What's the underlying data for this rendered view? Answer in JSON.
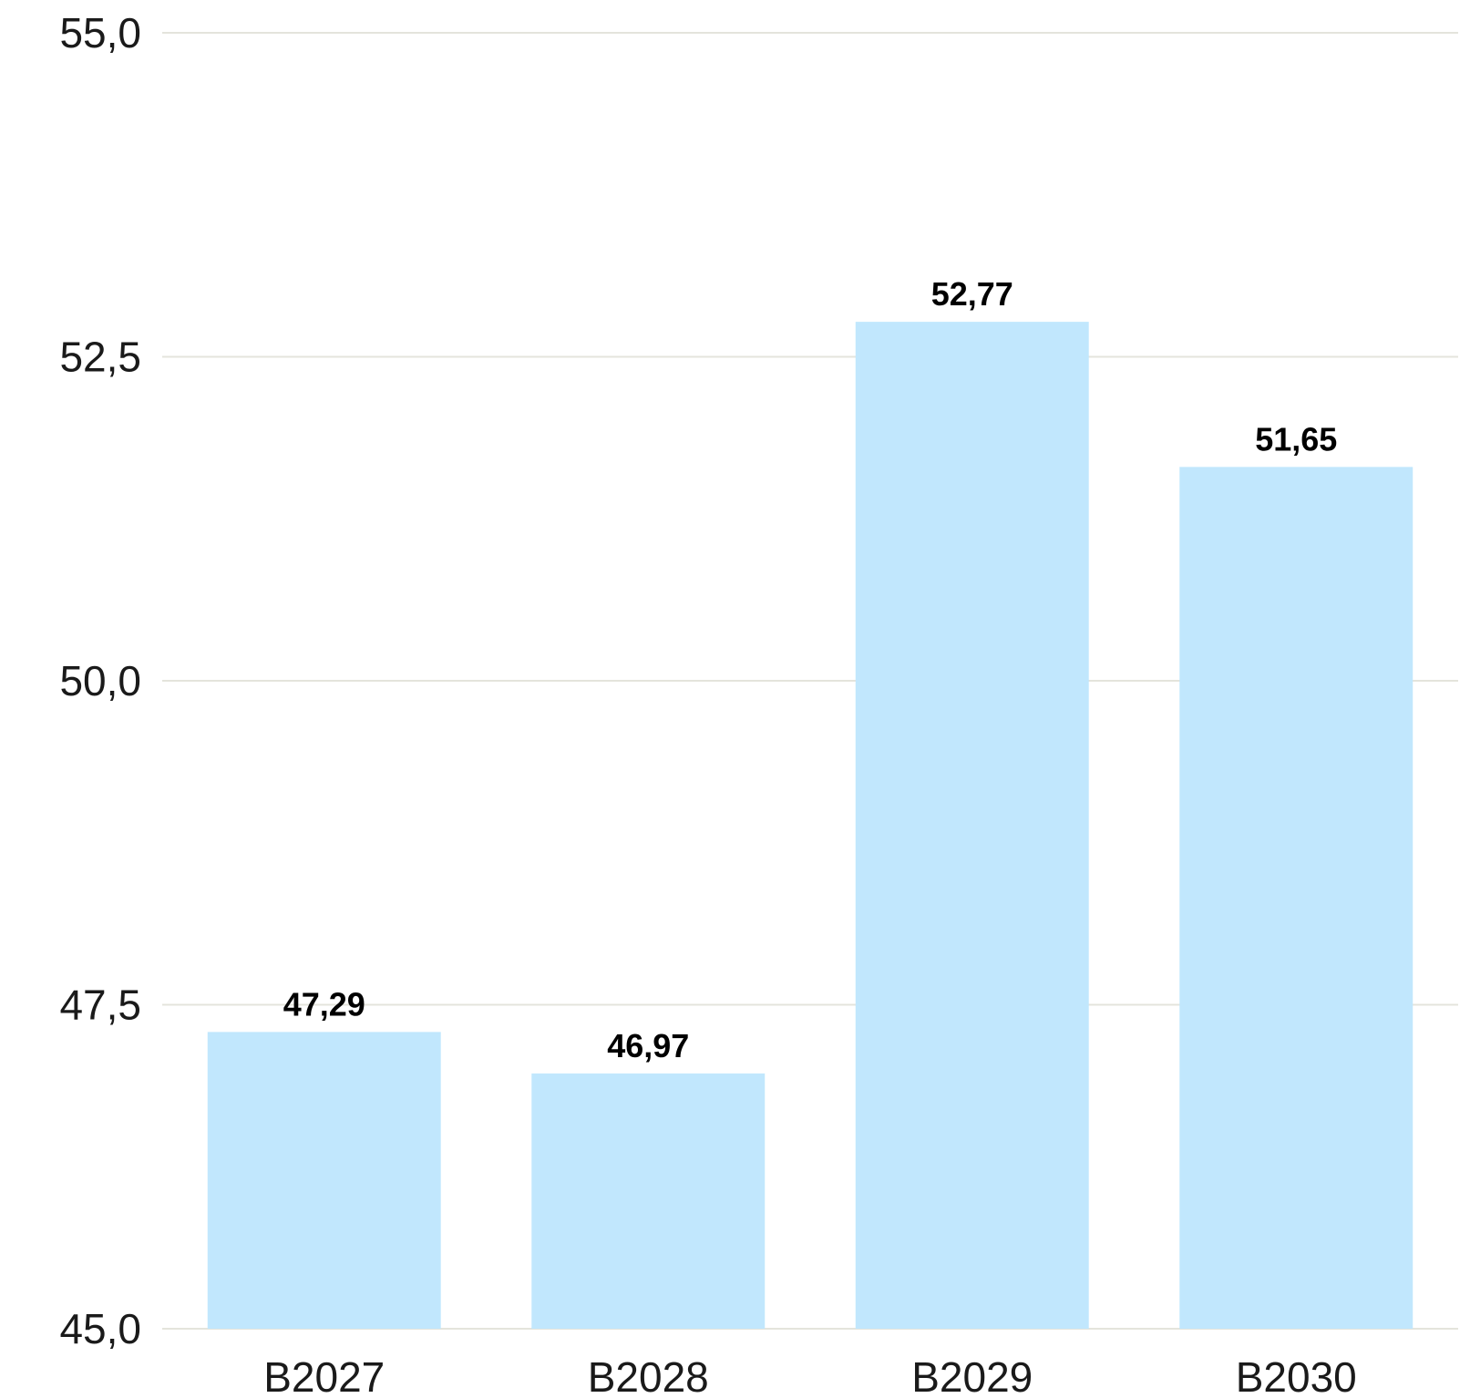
{
  "chart_data": {
    "type": "bar",
    "categories": [
      "B2027",
      "B2028",
      "B2029",
      "B2030"
    ],
    "values": [
      47.29,
      46.97,
      52.77,
      51.65
    ],
    "value_labels": [
      "47,29",
      "46,97",
      "52,77",
      "51,65"
    ],
    "title": "",
    "xlabel": "",
    "ylabel": "",
    "ylim": [
      45.0,
      55.0
    ],
    "yticks": [
      45.0,
      47.5,
      50.0,
      52.5,
      55.0
    ],
    "ytick_labels": [
      "45,0",
      "47,5",
      "50,0",
      "52,5",
      "55,0"
    ],
    "grid": true,
    "legend": "none",
    "colors": {
      "bar": "#c1e7fd",
      "grid": "#e4e4dc",
      "text": "#1a1a1a"
    }
  }
}
